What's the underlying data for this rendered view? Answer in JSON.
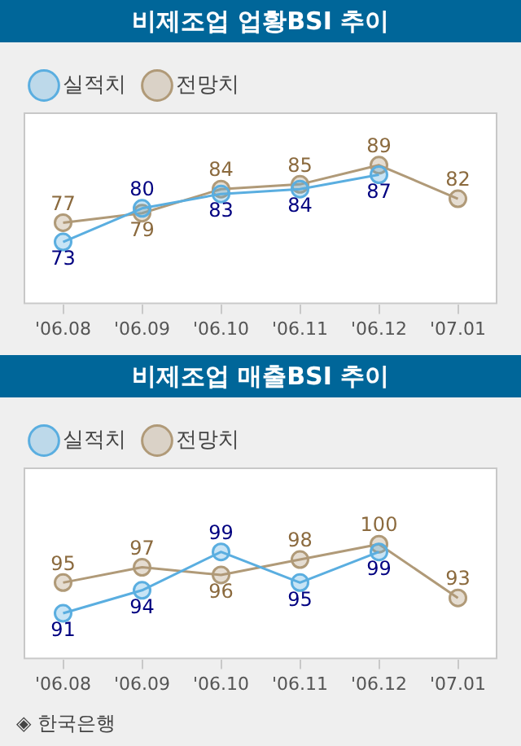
{
  "chart_data": [
    {
      "type": "line",
      "title": "비제조업 업황BSI 추이",
      "categories": [
        "'06.08",
        "'06.09",
        "'06.10",
        "'06.11",
        "'06.12",
        "'07.01"
      ],
      "series": [
        {
          "name": "실적치",
          "color": "#5aaee0",
          "values": [
            73,
            80,
            83,
            84,
            87,
            null
          ]
        },
        {
          "name": "전망치",
          "color": "#b09a78",
          "values": [
            77,
            79,
            84,
            85,
            89,
            82
          ]
        }
      ],
      "data_labels": true,
      "legend": "top left",
      "marker": "circle",
      "line_style": "solid",
      "grid": false,
      "tick_labels": "x"
    },
    {
      "type": "line",
      "title": "비제조업 매출BSI 추이",
      "categories": [
        "'06.08",
        "'06.09",
        "'06.10",
        "'06.11",
        "'06.12",
        "'07.01"
      ],
      "series": [
        {
          "name": "실적치",
          "color": "#5aaee0",
          "values": [
            91,
            94,
            99,
            95,
            99,
            null
          ]
        },
        {
          "name": "전망치",
          "color": "#b09a78",
          "values": [
            95,
            97,
            96,
            98,
            100,
            93
          ]
        }
      ],
      "data_labels": true,
      "legend": "top left",
      "marker": "circle",
      "line_style": "solid",
      "grid": false,
      "tick_labels": "x",
      "annotations": [
        "◈ 한국은행"
      ]
    }
  ]
}
